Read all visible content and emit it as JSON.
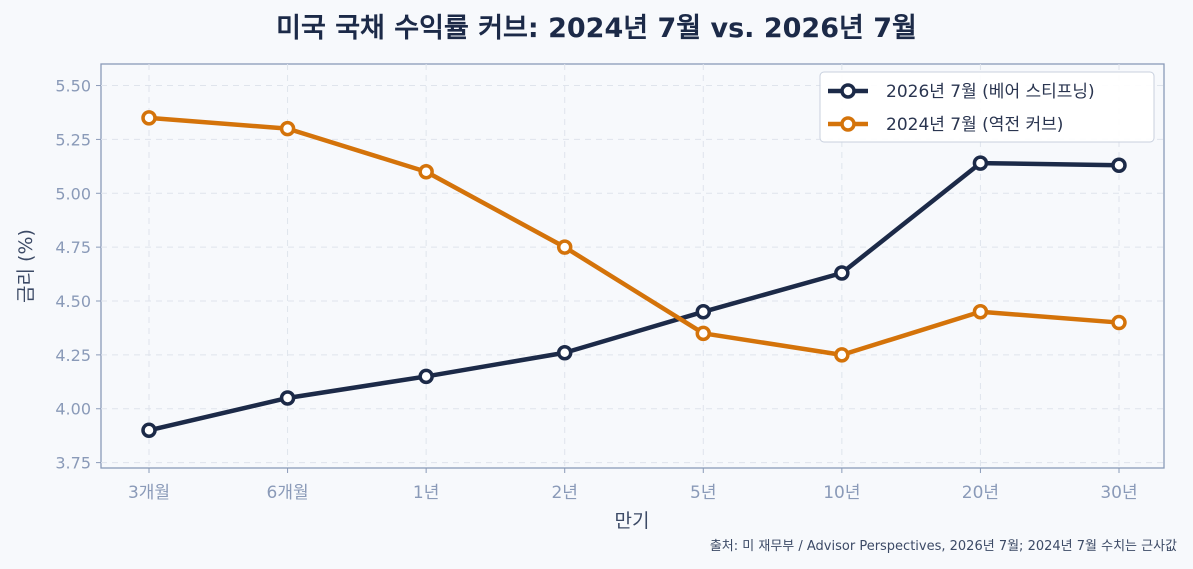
{
  "chart_data": {
    "type": "line",
    "title": "미국 국채 수익률 커브: 2024년 7월 vs. 2026년 7월",
    "xlabel": "만기",
    "ylabel": "금리 (%)",
    "categories": [
      "3개월",
      "6개월",
      "1년",
      "2년",
      "5년",
      "10년",
      "20년",
      "30년"
    ],
    "ylim": [
      3.725,
      5.6
    ],
    "yticks": [
      "3.75",
      "4.00",
      "4.25",
      "4.50",
      "4.75",
      "5.00",
      "5.25",
      "5.50"
    ],
    "grid": true,
    "legend_position": "top-right",
    "series": [
      {
        "name": "2026년 7월 (베어 스티프닝)",
        "color": "#1c2a48",
        "values": [
          3.9,
          4.05,
          4.15,
          4.26,
          4.45,
          4.63,
          5.14,
          5.13
        ]
      },
      {
        "name": "2024년 7월 (역전 커브)",
        "color": "#d4730a",
        "values": [
          5.35,
          5.3,
          5.1,
          4.75,
          4.35,
          4.25,
          4.45,
          4.4
        ]
      }
    ],
    "source": "출처: 미 재무부 / Advisor Perspectives, 2026년 7월; 2024년 7월 수치는 근사값"
  }
}
